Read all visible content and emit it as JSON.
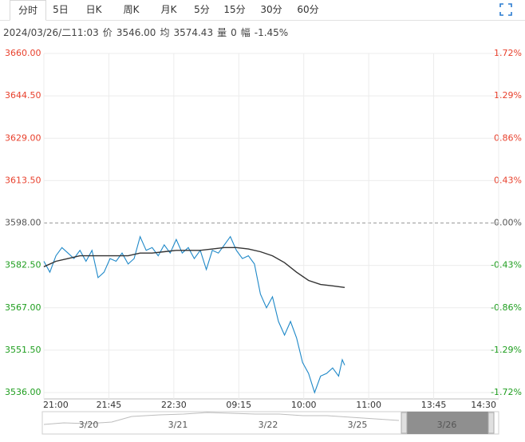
{
  "tabs": [
    "分时",
    "5日",
    "日K",
    "周K",
    "月K",
    "5分",
    "15分",
    "30分",
    "60分"
  ],
  "info": [
    "2024/03/26/二11:03",
    "价",
    "3546.00",
    "均",
    "3574.43",
    "量",
    "0",
    "幅",
    "-1.45%"
  ],
  "chart_data": {
    "type": "line",
    "up_color": "#e8402c",
    "down_color": "#1f9e1f",
    "flat_color": "#555555",
    "grid": true,
    "xlim": [
      0,
      378
    ],
    "xticks": [
      {
        "value": 0,
        "label": "21:00"
      },
      {
        "value": 54,
        "label": "21:45"
      },
      {
        "value": 108,
        "label": "22:30"
      },
      {
        "value": 162,
        "label": "09:15"
      },
      {
        "value": 216,
        "label": "10:00"
      },
      {
        "value": 270,
        "label": "11:00"
      },
      {
        "value": 324,
        "label": "13:45"
      },
      {
        "value": 378,
        "label": "14:30"
      }
    ],
    "ylim": [
      3536,
      3660
    ],
    "yticks": [
      {
        "value": 3660,
        "label": "3660.00"
      },
      {
        "value": 3644.5,
        "label": "3644.50"
      },
      {
        "value": 3629,
        "label": "3629.00"
      },
      {
        "value": 3613.5,
        "label": "3613.50"
      },
      {
        "value": 3598,
        "label": "3598.00"
      },
      {
        "value": 3582.5,
        "label": "3582.50"
      },
      {
        "value": 3567,
        "label": "3567.00"
      },
      {
        "value": 3551.5,
        "label": "3551.50"
      },
      {
        "value": 3536,
        "label": "3536.00"
      }
    ],
    "y2lim": [
      -1.72,
      1.72
    ],
    "y2ticks": [
      {
        "value": 1.72,
        "label": "1.72%"
      },
      {
        "value": 1.29,
        "label": "1.29%"
      },
      {
        "value": 0.86,
        "label": "0.86%"
      },
      {
        "value": 0.43,
        "label": "0.43%"
      },
      {
        "value": 0,
        "label": "0.00%"
      },
      {
        "value": -0.43,
        "label": "-0.43%"
      },
      {
        "value": -0.86,
        "label": "-0.86%"
      },
      {
        "value": -1.29,
        "label": "-1.29%"
      },
      {
        "value": -1.72,
        "label": "-1.72%"
      }
    ],
    "series": [
      {
        "color": "#1e88c8",
        "x": [
          0,
          5,
          10,
          15,
          20,
          25,
          30,
          35,
          40,
          45,
          50,
          55,
          60,
          65,
          70,
          75,
          80,
          85,
          90,
          95,
          100,
          105,
          110,
          115,
          120,
          125,
          130,
          135,
          140,
          145,
          150,
          155,
          160,
          165,
          170,
          175,
          180,
          185,
          190,
          195,
          200,
          205,
          210,
          215,
          220,
          225,
          230,
          235,
          240,
          245,
          248,
          250
        ],
        "values": [
          3584,
          3580,
          3586,
          3589,
          3587,
          3585,
          3588,
          3584,
          3588,
          3578,
          3580,
          3585,
          3584,
          3587,
          3583,
          3585,
          3593,
          3588,
          3589,
          3586,
          3590,
          3587,
          3592,
          3587,
          3589,
          3585,
          3588,
          3581,
          3588,
          3587,
          3590,
          3593,
          3588,
          3585,
          3586,
          3583,
          3572,
          3567,
          3571,
          3562,
          3557,
          3562,
          3556,
          3547,
          3543,
          3536,
          3542,
          3543,
          3545,
          3542,
          3548,
          3546
        ]
      },
      {
        "color": "#333333",
        "x": [
          0,
          10,
          20,
          30,
          40,
          50,
          60,
          70,
          80,
          90,
          100,
          110,
          120,
          130,
          140,
          150,
          160,
          170,
          180,
          190,
          200,
          210,
          220,
          230,
          240,
          250
        ],
        "values": [
          3582,
          3584,
          3585,
          3586,
          3586,
          3586,
          3586,
          3586,
          3587,
          3587,
          3587.5,
          3588,
          3588,
          3588,
          3588.5,
          3589,
          3589,
          3588.5,
          3587.5,
          3586,
          3583.5,
          3580,
          3577,
          3575.5,
          3575,
          3574.43
        ]
      }
    ]
  },
  "navigator": {
    "labels": [
      "3/20",
      "3/21",
      "3/22",
      "3/25",
      "3/26"
    ]
  }
}
